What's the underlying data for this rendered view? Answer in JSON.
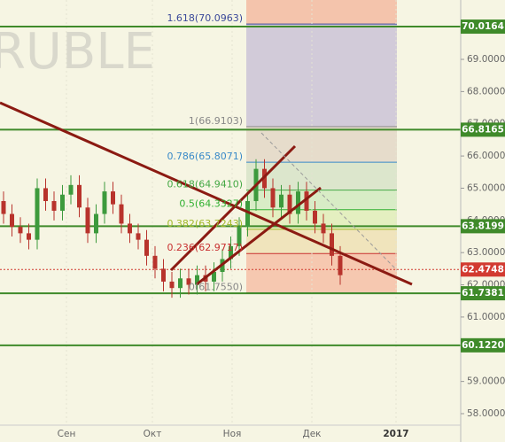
{
  "chart_data": {
    "type": "candlestick",
    "watermark": "RUBLE",
    "xlabels": [
      "Сен",
      "Окт",
      "Ноя",
      "Дек",
      "2017"
    ],
    "ylim": [
      57.12,
      70.843
    ],
    "yticks": [
      {
        "value": 58,
        "label": "58.0000"
      },
      {
        "value": 59,
        "label": "59.0000"
      },
      {
        "value": 60,
        "label": "60.0000"
      },
      {
        "value": 61,
        "label": "61.0000"
      },
      {
        "value": 62,
        "label": "62.0000"
      },
      {
        "value": 63,
        "label": "63.0000"
      },
      {
        "value": 64,
        "label": "64.0000"
      },
      {
        "value": 65,
        "label": "65.0000"
      },
      {
        "value": 66,
        "label": "66.0000"
      },
      {
        "value": 67,
        "label": "67.0000"
      },
      {
        "value": 68,
        "label": "68.0000"
      },
      {
        "value": 69,
        "label": "69.0000"
      }
    ],
    "up_color": "#3d9a3d",
    "down_color": "#b8332c",
    "candles": {
      "open": [
        64.6,
        64.2,
        63.8,
        63.6,
        63.4,
        65.0,
        64.6,
        64.3,
        64.8,
        65.1,
        64.4,
        63.6,
        64.2,
        64.9,
        64.5,
        63.9,
        63.6,
        63.4,
        62.9,
        62.5,
        62.1,
        61.9,
        62.2,
        62.0,
        62.3,
        62.1,
        62.4,
        62.8,
        63.2,
        63.8,
        64.6,
        65.6,
        65.0,
        64.4,
        64.8,
        64.2,
        64.9,
        64.3,
        63.9,
        63.6,
        62.9
      ],
      "high": [
        64.9,
        64.5,
        64.1,
        63.9,
        65.3,
        65.3,
        64.9,
        65.1,
        65.4,
        65.4,
        64.7,
        64.5,
        65.2,
        65.2,
        64.8,
        64.2,
        63.9,
        63.7,
        63.2,
        62.8,
        62.4,
        62.5,
        62.5,
        62.6,
        62.6,
        62.7,
        63.1,
        63.5,
        64.1,
        64.9,
        65.9,
        65.9,
        65.3,
        65.1,
        65.1,
        65.2,
        65.2,
        64.6,
        64.2,
        63.9,
        63.2
      ],
      "low": [
        63.9,
        63.5,
        63.3,
        63.1,
        63.1,
        64.3,
        64.0,
        64.0,
        64.5,
        64.1,
        63.3,
        63.3,
        63.9,
        64.2,
        63.6,
        63.3,
        63.1,
        62.6,
        62.2,
        61.8,
        61.6,
        61.6,
        61.7,
        61.7,
        61.8,
        61.8,
        62.1,
        62.5,
        62.9,
        63.5,
        64.3,
        64.7,
        64.1,
        64.1,
        63.9,
        63.9,
        64.0,
        63.6,
        63.3,
        62.6,
        62.0
      ],
      "close": [
        64.2,
        63.8,
        63.6,
        63.4,
        65.0,
        64.6,
        64.3,
        64.8,
        65.1,
        64.4,
        63.6,
        64.2,
        64.9,
        64.5,
        63.9,
        63.6,
        63.4,
        62.9,
        62.5,
        62.1,
        61.9,
        62.2,
        62.0,
        62.3,
        62.1,
        62.4,
        62.8,
        63.2,
        63.8,
        64.6,
        65.6,
        65.0,
        64.4,
        64.8,
        64.2,
        64.9,
        64.3,
        63.9,
        63.6,
        62.9,
        62.3
      ]
    },
    "levels": [
      {
        "value": 70.0164,
        "label": "70.0164",
        "color": "#3f8a2a"
      },
      {
        "value": 66.8165,
        "label": "66.8165",
        "color": "#3f8a2a"
      },
      {
        "value": 63.8199,
        "label": "63.8199",
        "color": "#3f8a2a"
      },
      {
        "value": 62.4748,
        "label": "62.4748",
        "color": "#d23a30"
      },
      {
        "value": 61.7381,
        "label": "61.7381",
        "color": "#3f8a2a"
      },
      {
        "value": 60.122,
        "label": "60.1220",
        "color": "#3f8a2a"
      }
    ],
    "fib": {
      "top_fill": "#f4c4ac",
      "levels": [
        {
          "value": 70.0963,
          "label": "1.618(70.0963)",
          "color": "#3c4a9a",
          "fill": "#d2cbd9"
        },
        {
          "value": 66.9103,
          "label": "1(66.9103)",
          "color": "#888888",
          "fill": "#e6dccb"
        },
        {
          "value": 65.8071,
          "label": "0.786(65.8071)",
          "color": "#3a8ac8",
          "fill": "#dce6cc"
        },
        {
          "value": 64.941,
          "label": "0.618(64.9410)",
          "color": "#45a845",
          "fill": "#d8ecc6"
        },
        {
          "value": 64.3327,
          "label": "0.5(64.3327)",
          "color": "#30b030",
          "fill": "#e4efc0"
        },
        {
          "value": 63.7243,
          "label": "0.382(63.7243)",
          "color": "#a0b828",
          "fill": "#f0e4bc"
        },
        {
          "value": 62.9717,
          "label": "0.236(62.9717)",
          "color": "#c83030",
          "fill": "#f6c8b0"
        },
        {
          "value": 61.755,
          "label": "0(61.7550)",
          "color": "#888888",
          "fill": "none"
        }
      ]
    }
  }
}
